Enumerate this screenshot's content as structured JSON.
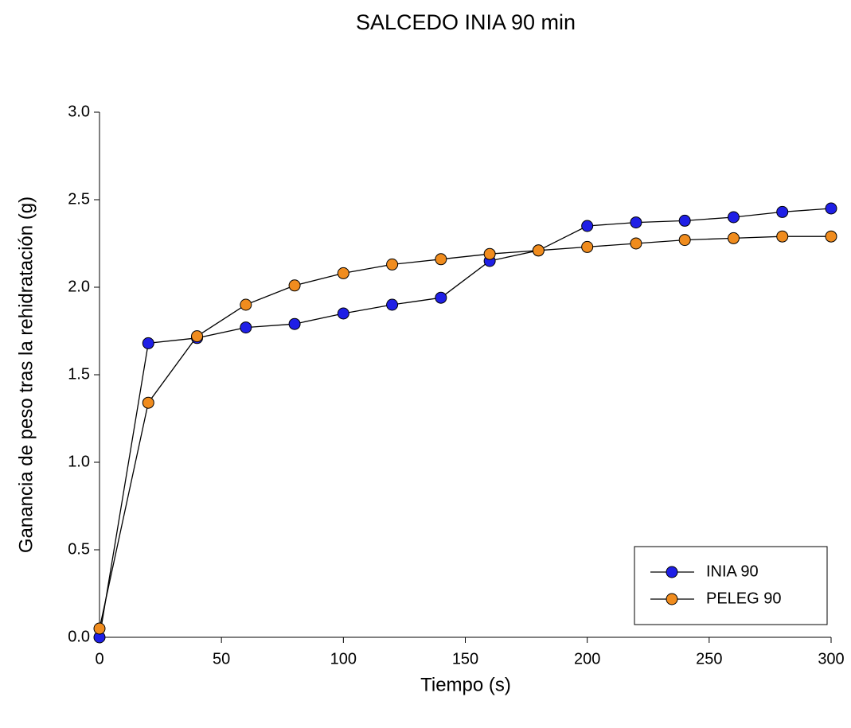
{
  "chart_data": {
    "type": "line",
    "title": "SALCEDO INIA 90 min",
    "x_label": "Tiempo (s)",
    "y_label": "Ganancia de peso tras la rehidratación (g)",
    "x": [
      0,
      20,
      40,
      60,
      80,
      100,
      120,
      140,
      160,
      180,
      200,
      220,
      240,
      260,
      280,
      300
    ],
    "series": [
      {
        "name": "INIA 90",
        "color": "#1f1fe6",
        "values": [
          0.0,
          1.68,
          1.71,
          1.77,
          1.79,
          1.85,
          1.9,
          1.94,
          2.15,
          2.21,
          2.35,
          2.37,
          2.38,
          2.4,
          2.43,
          2.45
        ]
      },
      {
        "name": "PELEG 90",
        "color": "#f08c1e",
        "values": [
          0.05,
          1.34,
          1.72,
          1.9,
          2.01,
          2.08,
          2.13,
          2.16,
          2.19,
          2.21,
          2.23,
          2.25,
          2.27,
          2.28,
          2.29,
          2.29
        ]
      }
    ],
    "xlim": [
      0,
      300
    ],
    "xticks": [
      0,
      50,
      100,
      150,
      200,
      250,
      300
    ],
    "ylim": [
      0,
      3
    ],
    "yticks": [
      {
        "value": 0,
        "label": "0.0"
      },
      {
        "value": 0.5,
        "label": "0.5"
      },
      {
        "value": 1,
        "label": "1.0"
      },
      {
        "value": 1.5,
        "label": "1.5"
      },
      {
        "value": 2,
        "label": "2.0"
      },
      {
        "value": 2.5,
        "label": "2.5"
      },
      {
        "value": 3,
        "label": "3.0"
      }
    ],
    "legend": "lower right",
    "line_color": "#000000"
  }
}
